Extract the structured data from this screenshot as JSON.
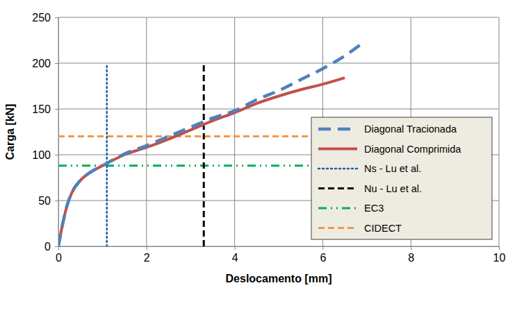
{
  "chart_data": {
    "type": "line",
    "x_label": "Deslocamento [mm]",
    "y_label": "Carga [kN]",
    "xlim": [
      0,
      10
    ],
    "ylim": [
      0,
      250
    ],
    "xticks": [
      0,
      2,
      4,
      6,
      8,
      10
    ],
    "yticks": [
      0,
      50,
      100,
      150,
      200,
      250
    ],
    "grid": true,
    "legend": "lower right",
    "series": [
      {
        "name": "Diagonal Tracionada",
        "color": "#4f81bd",
        "line_style": "dashed",
        "x": [
          0,
          0.1,
          0.2,
          0.3,
          0.5,
          0.7,
          1.0,
          1.5,
          2.0,
          2.5,
          3.0,
          3.5,
          4.0,
          4.5,
          5.0,
          5.5,
          6.0,
          6.5,
          6.85
        ],
        "values": [
          0,
          25,
          45,
          58,
          72,
          80,
          88,
          101,
          110,
          120,
          130,
          140,
          148,
          160,
          170,
          182,
          194,
          208,
          220
        ]
      },
      {
        "name": "Diagonal Comprimida",
        "color": "#c0504d",
        "line_style": "solid",
        "x": [
          0,
          0.1,
          0.2,
          0.3,
          0.5,
          0.7,
          1.0,
          1.5,
          2.0,
          2.5,
          3.0,
          3.5,
          4.0,
          4.5,
          5.0,
          5.5,
          6.0,
          6.5
        ],
        "values": [
          0,
          25,
          45,
          58,
          72,
          80,
          88,
          100,
          108,
          117,
          127,
          137,
          146,
          156,
          164,
          171,
          177,
          184
        ]
      },
      {
        "name": "Ns - Lu et al.",
        "color": "#1f5f9f",
        "line_style": "dotted",
        "x": [
          1.1,
          1.1
        ],
        "values": [
          0,
          200
        ]
      },
      {
        "name": "Nu - Lu et al.",
        "color": "#000000",
        "line_style": "dashed",
        "x": [
          3.3,
          3.3
        ],
        "values": [
          0,
          200
        ]
      },
      {
        "name": "EC3",
        "color": "#00b050",
        "line_style": "dash-dot-dot",
        "x": [
          0,
          5.7
        ],
        "values": [
          88,
          88
        ]
      },
      {
        "name": "CIDECT",
        "color": "#f79646",
        "line_style": "dashed",
        "x": [
          0,
          5.7
        ],
        "values": [
          120,
          120
        ]
      }
    ]
  }
}
